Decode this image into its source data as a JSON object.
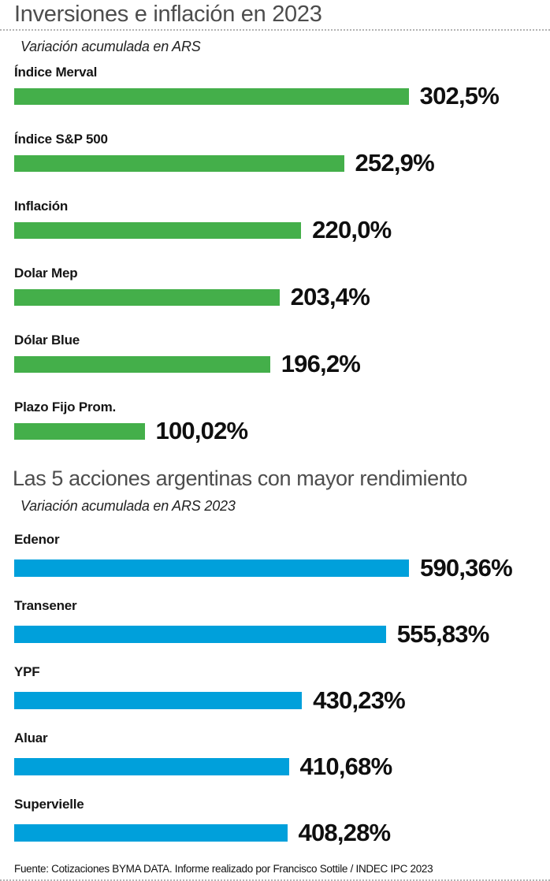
{
  "page": {
    "footer": "Fuente: Cotizaciones BYMA DATA. Informe realizado por Francisco Sottile / INDEC IPC 2023"
  },
  "colors": {
    "green_bar": "#44af4a",
    "blue_bar": "#00a0db",
    "title_gray": "#4d4d4d",
    "text_black": "#151515",
    "dotted_divider": "#b3b3b3"
  },
  "chart_data": [
    {
      "type": "bar",
      "orientation": "horizontal",
      "title": "Inversiones e inflación en 2023",
      "subtitle": "Variación acumulada en ARS",
      "bar_color": "#44af4a",
      "axis_max": 400,
      "grid": false,
      "legend": false,
      "categories": [
        "Índice Merval",
        "Índice S&P 500",
        "Inflación",
        "Dolar Mep",
        "Dólar Blue",
        "Plazo Fijo Prom."
      ],
      "values": [
        302.5,
        252.9,
        220.0,
        203.4,
        196.2,
        100.02
      ],
      "value_labels": [
        "302,5%",
        "252,9%",
        "220,0%",
        "203,4%",
        "196,2%",
        "100,02%"
      ]
    },
    {
      "type": "bar",
      "orientation": "horizontal",
      "title": "Las 5 acciones argentinas con mayor rendimiento",
      "subtitle": "Variación acumulada en ARS 2023",
      "bar_color": "#00a0db",
      "axis_max": 780,
      "grid": false,
      "legend": false,
      "categories": [
        "Edenor",
        "Transener",
        "YPF",
        "Aluar",
        "Supervielle"
      ],
      "values": [
        590.36,
        555.83,
        430.23,
        410.68,
        408.28
      ],
      "value_labels": [
        "590,36%",
        "555,83%",
        "430,23%",
        "410,68%",
        "408,28%"
      ]
    }
  ]
}
